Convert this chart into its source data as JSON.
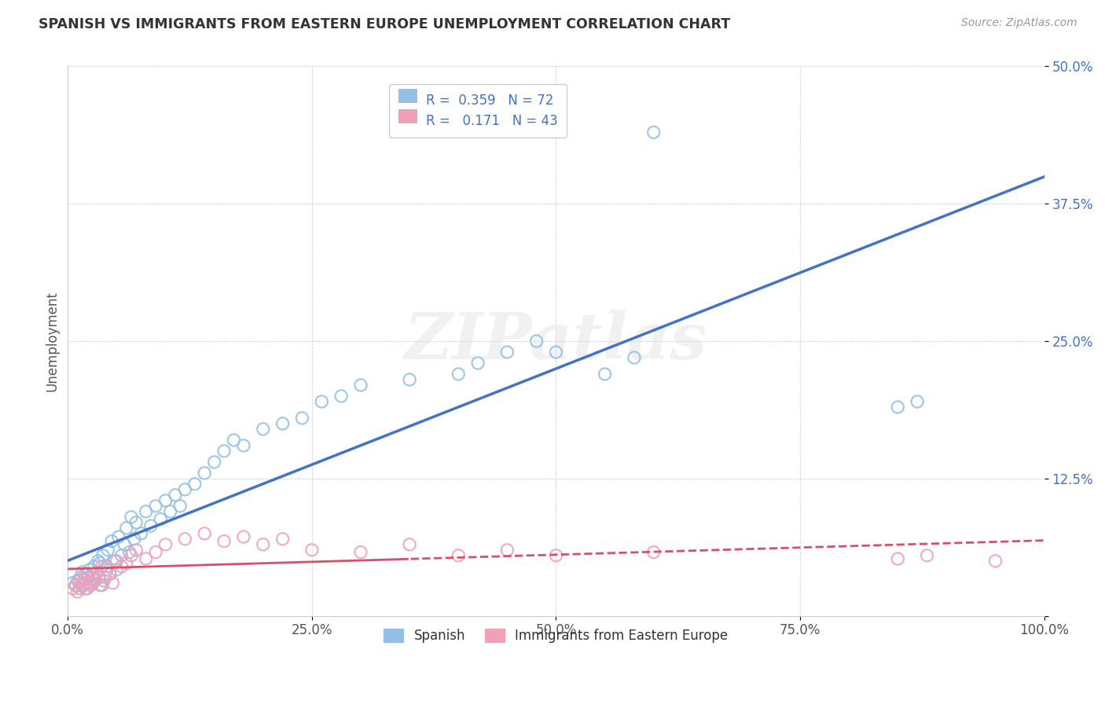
{
  "title": "SPANISH VS IMMIGRANTS FROM EASTERN EUROPE UNEMPLOYMENT CORRELATION CHART",
  "source": "Source: ZipAtlas.com",
  "ylabel": "Unemployment",
  "xlim": [
    0,
    1.0
  ],
  "ylim": [
    0,
    0.5
  ],
  "xticks": [
    0.0,
    0.25,
    0.5,
    0.75,
    1.0
  ],
  "xticklabels": [
    "0.0%",
    "25.0%",
    "50.0%",
    "75.0%",
    "100.0%"
  ],
  "yticks": [
    0.0,
    0.125,
    0.25,
    0.375,
    0.5
  ],
  "yticklabels": [
    "",
    "12.5%",
    "25.0%",
    "37.5%",
    "50.0%"
  ],
  "legend_line1": "R =  0.359   N = 72",
  "legend_line2": "R =   0.171   N = 43",
  "blue_color": "#92C0E8",
  "pink_color": "#F2A0B8",
  "trend_blue": "#4472C4",
  "trend_pink": "#D94F6A",
  "watermark": "ZIPatlas",
  "background_color": "#FFFFFF",
  "spanish_x": [
    0.005,
    0.008,
    0.01,
    0.012,
    0.013,
    0.015,
    0.015,
    0.017,
    0.018,
    0.019,
    0.02,
    0.021,
    0.022,
    0.023,
    0.025,
    0.026,
    0.027,
    0.028,
    0.03,
    0.031,
    0.032,
    0.033,
    0.035,
    0.036,
    0.037,
    0.04,
    0.041,
    0.043,
    0.045,
    0.048,
    0.05,
    0.052,
    0.055,
    0.058,
    0.06,
    0.063,
    0.065,
    0.068,
    0.07,
    0.075,
    0.08,
    0.085,
    0.09,
    0.095,
    0.1,
    0.105,
    0.11,
    0.115,
    0.12,
    0.13,
    0.14,
    0.15,
    0.16,
    0.17,
    0.18,
    0.2,
    0.22,
    0.24,
    0.26,
    0.28,
    0.3,
    0.35,
    0.4,
    0.42,
    0.45,
    0.48,
    0.5,
    0.55,
    0.58,
    0.6,
    0.85,
    0.87
  ],
  "spanish_y": [
    0.03,
    0.028,
    0.032,
    0.025,
    0.035,
    0.028,
    0.04,
    0.033,
    0.038,
    0.03,
    0.025,
    0.035,
    0.042,
    0.028,
    0.038,
    0.03,
    0.045,
    0.033,
    0.04,
    0.05,
    0.035,
    0.048,
    0.028,
    0.055,
    0.032,
    0.045,
    0.06,
    0.038,
    0.068,
    0.05,
    0.042,
    0.072,
    0.055,
    0.065,
    0.08,
    0.058,
    0.09,
    0.07,
    0.085,
    0.075,
    0.095,
    0.082,
    0.1,
    0.088,
    0.105,
    0.095,
    0.11,
    0.1,
    0.115,
    0.12,
    0.13,
    0.14,
    0.15,
    0.16,
    0.155,
    0.17,
    0.175,
    0.18,
    0.195,
    0.2,
    0.21,
    0.215,
    0.22,
    0.23,
    0.24,
    0.25,
    0.24,
    0.22,
    0.235,
    0.44,
    0.19,
    0.195
  ],
  "eastern_x": [
    0.005,
    0.008,
    0.01,
    0.012,
    0.015,
    0.017,
    0.018,
    0.02,
    0.022,
    0.024,
    0.026,
    0.028,
    0.03,
    0.033,
    0.035,
    0.038,
    0.04,
    0.043,
    0.046,
    0.05,
    0.055,
    0.06,
    0.065,
    0.07,
    0.08,
    0.09,
    0.1,
    0.12,
    0.14,
    0.16,
    0.18,
    0.2,
    0.22,
    0.25,
    0.3,
    0.35,
    0.4,
    0.45,
    0.5,
    0.6,
    0.85,
    0.88,
    0.95
  ],
  "eastern_y": [
    0.025,
    0.028,
    0.022,
    0.032,
    0.027,
    0.033,
    0.025,
    0.038,
    0.03,
    0.028,
    0.035,
    0.032,
    0.04,
    0.028,
    0.045,
    0.035,
    0.042,
    0.038,
    0.03,
    0.05,
    0.045,
    0.048,
    0.055,
    0.06,
    0.052,
    0.058,
    0.065,
    0.07,
    0.075,
    0.068,
    0.072,
    0.065,
    0.07,
    0.06,
    0.058,
    0.065,
    0.055,
    0.06,
    0.055,
    0.058,
    0.052,
    0.055,
    0.05
  ]
}
